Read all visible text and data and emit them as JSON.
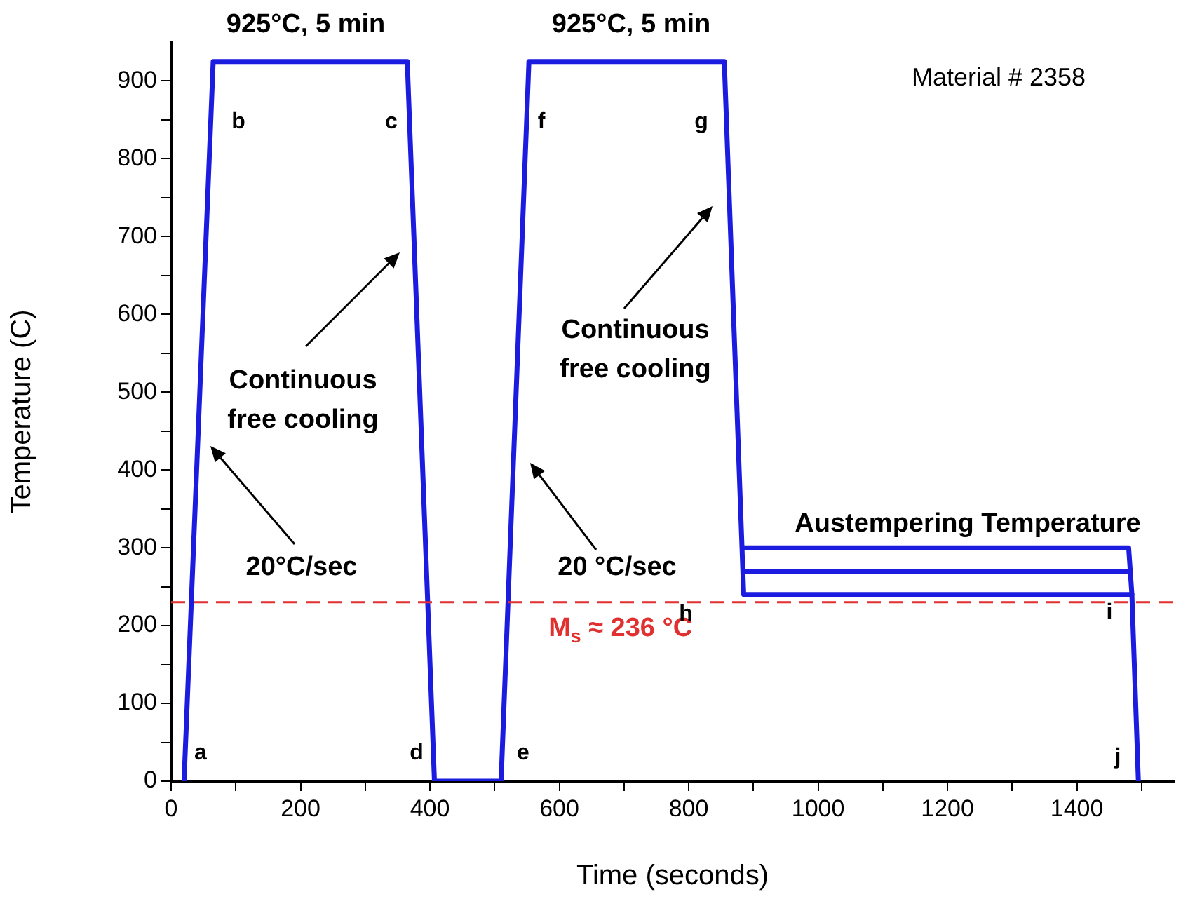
{
  "chart_data": {
    "type": "line",
    "xlabel": "Time (seconds)",
    "ylabel": "Temperature (C)",
    "xlim": [
      0,
      1550
    ],
    "ylim": [
      0,
      950
    ],
    "xticks": [
      0,
      {
        "value": 100,
        "label": null
      },
      200,
      {
        "value": 300,
        "label": null
      },
      400,
      {
        "value": 500,
        "label": null
      },
      600,
      {
        "value": 700,
        "label": null
      },
      800,
      {
        "value": 900,
        "label": null
      },
      1000,
      {
        "value": 1100,
        "label": null
      },
      1200,
      {
        "value": 1300,
        "label": null
      },
      1400,
      {
        "value": 1500,
        "label": null
      }
    ],
    "yticks": [
      0,
      {
        "value": 50,
        "label": null
      },
      100,
      {
        "value": 150,
        "label": null
      },
      200,
      {
        "value": 250,
        "label": null
      },
      300,
      {
        "value": 350,
        "label": null
      },
      400,
      {
        "value": 450,
        "label": null
      },
      500,
      {
        "value": 550,
        "label": null
      },
      600,
      {
        "value": 650,
        "label": null
      },
      700,
      {
        "value": 750,
        "label": null
      },
      800,
      {
        "value": 850,
        "label": null
      },
      900
    ],
    "series": [
      {
        "color": "#1c1ce0",
        "x": [
          20,
          65,
          365,
          407,
          510,
          553,
          855,
          885,
          1485,
          1495
        ],
        "values": [
          0,
          925,
          925,
          0,
          0,
          925,
          925,
          240,
          240,
          0
        ]
      },
      {
        "color": "#1c1ce0",
        "x": [
          885,
          1480,
          1485
        ],
        "values": [
          300,
          300,
          240
        ]
      },
      {
        "color": "#1c1ce0",
        "x": [
          885,
          1480
        ],
        "values": [
          270,
          270
        ]
      }
    ],
    "marker": "none",
    "line_style": "solid",
    "grid": false,
    "legend": false,
    "ref_lines": [
      {
        "axis": "y",
        "value": 230,
        "label": "M$_{s}$ ≈ 236 °C",
        "color": "#e03030",
        "line_style": "dashed"
      }
    ],
    "annotations": [
      "Material # 2358",
      "925°C, 5 min",
      "925°C, 5 min",
      "a",
      "b",
      "c",
      "d",
      "e",
      "f",
      "g",
      "h",
      "i",
      "j",
      "Continuous\nfree cooling",
      "Continuous\nfree cooling",
      "20°C/sec",
      "20 °C/sec",
      "Austempering Temperature"
    ]
  }
}
